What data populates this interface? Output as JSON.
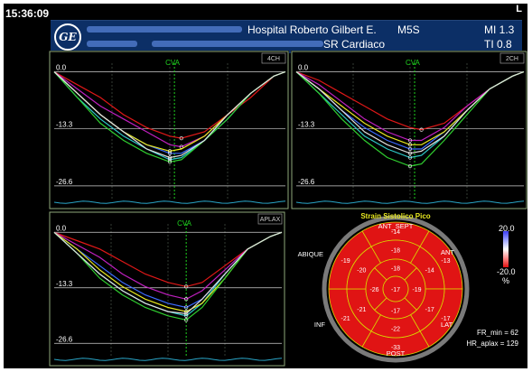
{
  "clock": "15:36:09",
  "corner_label": "L",
  "header": {
    "logo_text": "GE",
    "hospital": "Hospital Roberto Gilbert E.",
    "probe": "M5S",
    "mi": "MI 1.3",
    "department": "SR Cardiaco",
    "ti": "TI 0.8"
  },
  "panels": {
    "four_ch": {
      "view_label": "4CH",
      "marker_label": "CVA"
    },
    "two_ch": {
      "view_label": "2CH",
      "marker_label": "CVA"
    },
    "aplax": {
      "view_label": "APLAX",
      "marker_label": "CVA"
    }
  },
  "colors": {
    "background": "#000000",
    "header": "#0c2f66",
    "cva_marker": "#1fd31f",
    "frame_border": "#8ea77a",
    "bullseye_fill": "#e01414",
    "bullseye_lines": "#d8d800"
  },
  "chart_data": [
    {
      "type": "line",
      "title": "4CH",
      "yticks": [
        "0.0",
        "-13.3",
        "-26.6"
      ],
      "ylim": [
        -30,
        2
      ],
      "xlim": [
        0,
        100
      ],
      "marker": {
        "label": "CVA",
        "x": 52
      },
      "series": [
        {
          "color": "#e01818",
          "x": [
            0,
            10,
            20,
            30,
            40,
            50,
            55,
            65,
            75,
            85,
            95,
            100
          ],
          "values": [
            0,
            -3,
            -6,
            -10,
            -13,
            -15,
            -15.5,
            -14,
            -10,
            -6,
            -1,
            0
          ]
        },
        {
          "color": "#c020c0",
          "x": [
            0,
            10,
            20,
            30,
            40,
            50,
            55,
            65,
            75,
            85,
            95,
            100
          ],
          "values": [
            0,
            -4,
            -8,
            -11,
            -14,
            -17,
            -17.5,
            -15,
            -10,
            -5,
            -1,
            0
          ]
        },
        {
          "color": "#3c6cff",
          "x": [
            0,
            10,
            20,
            30,
            40,
            50,
            55,
            65,
            75,
            85,
            95,
            100
          ],
          "values": [
            0,
            -5,
            -10,
            -14,
            -17,
            -19,
            -19,
            -16,
            -11,
            -5,
            -1,
            0
          ]
        },
        {
          "color": "#2ec8c8",
          "x": [
            0,
            10,
            20,
            30,
            40,
            50,
            55,
            65,
            75,
            85,
            95,
            100
          ],
          "values": [
            0,
            -6,
            -11,
            -15,
            -18,
            -20.5,
            -20,
            -16,
            -10,
            -5,
            -1,
            0
          ]
        },
        {
          "color": "#e8e820",
          "x": [
            0,
            10,
            20,
            30,
            40,
            50,
            55,
            65,
            75,
            85,
            95,
            100
          ],
          "values": [
            0,
            -5,
            -10,
            -14,
            -17,
            -18.5,
            -18,
            -15,
            -10,
            -5,
            -1,
            0
          ]
        },
        {
          "color": "#30d030",
          "x": [
            0,
            10,
            20,
            30,
            40,
            50,
            55,
            65,
            75,
            85,
            95,
            100
          ],
          "values": [
            0,
            -6,
            -12,
            -16,
            -19,
            -21,
            -20.5,
            -16,
            -11,
            -5,
            -1,
            0
          ]
        },
        {
          "color": "#e0e0e0",
          "x": [
            0,
            10,
            20,
            30,
            40,
            50,
            55,
            65,
            75,
            85,
            95,
            100
          ],
          "values": [
            0,
            -5,
            -10,
            -14,
            -18,
            -20,
            -19.5,
            -16,
            -10,
            -5,
            -1,
            0
          ]
        }
      ]
    },
    {
      "type": "line",
      "title": "2CH",
      "yticks": [
        "0.0",
        "-13.3",
        "-26.6"
      ],
      "ylim": [
        -30,
        2
      ],
      "xlim": [
        0,
        100
      ],
      "marker": {
        "label": "CVA",
        "x": 52
      },
      "series": [
        {
          "color": "#e01818",
          "x": [
            0,
            10,
            20,
            30,
            40,
            50,
            55,
            65,
            75,
            85,
            95,
            100
          ],
          "values": [
            0,
            -2,
            -5,
            -8,
            -11,
            -13,
            -13.5,
            -12,
            -8,
            -4,
            -1,
            0
          ]
        },
        {
          "color": "#c020c0",
          "x": [
            0,
            10,
            20,
            30,
            40,
            50,
            55,
            65,
            75,
            85,
            95,
            100
          ],
          "values": [
            0,
            -3,
            -7,
            -11,
            -14,
            -16,
            -16,
            -13,
            -8,
            -4,
            -1,
            0
          ]
        },
        {
          "color": "#3c6cff",
          "x": [
            0,
            10,
            20,
            30,
            40,
            50,
            55,
            65,
            75,
            85,
            95,
            100
          ],
          "values": [
            0,
            -4,
            -9,
            -13,
            -16,
            -18,
            -18,
            -14,
            -9,
            -4,
            -1,
            0
          ]
        },
        {
          "color": "#2ec8c8",
          "x": [
            0,
            10,
            20,
            30,
            40,
            50,
            55,
            65,
            75,
            85,
            95,
            100
          ],
          "values": [
            0,
            -5,
            -10,
            -15,
            -18,
            -20,
            -19.5,
            -15,
            -9,
            -4,
            -1,
            0
          ]
        },
        {
          "color": "#e8e820",
          "x": [
            0,
            10,
            20,
            30,
            40,
            50,
            55,
            65,
            75,
            85,
            95,
            100
          ],
          "values": [
            0,
            -4,
            -8,
            -12,
            -15,
            -17,
            -17,
            -14,
            -9,
            -4,
            -1,
            0
          ]
        },
        {
          "color": "#30d030",
          "x": [
            0,
            10,
            20,
            30,
            40,
            50,
            55,
            65,
            75,
            85,
            95,
            100
          ],
          "values": [
            0,
            -5,
            -11,
            -16,
            -20,
            -22,
            -21.5,
            -16,
            -10,
            -4,
            -1,
            0
          ]
        },
        {
          "color": "#e0e0e0",
          "x": [
            0,
            10,
            20,
            30,
            40,
            50,
            55,
            65,
            75,
            85,
            95,
            100
          ],
          "values": [
            0,
            -4,
            -9,
            -14,
            -17,
            -19,
            -18.5,
            -15,
            -9,
            -4,
            -1,
            0
          ]
        }
      ]
    },
    {
      "type": "line",
      "title": "APLAX",
      "yticks": [
        "0.0",
        "-13.3",
        "-26.6"
      ],
      "ylim": [
        -30,
        2
      ],
      "xlim": [
        0,
        100
      ],
      "marker": {
        "label": "CVA",
        "x": 58
      },
      "series": [
        {
          "color": "#e01818",
          "x": [
            0,
            10,
            20,
            30,
            40,
            50,
            58,
            65,
            75,
            85,
            95,
            100
          ],
          "values": [
            0,
            -2,
            -4,
            -7,
            -10,
            -12,
            -13,
            -12,
            -8,
            -4,
            -1,
            0
          ]
        },
        {
          "color": "#c020c0",
          "x": [
            0,
            10,
            20,
            30,
            40,
            50,
            58,
            65,
            75,
            85,
            95,
            100
          ],
          "values": [
            0,
            -3,
            -6,
            -10,
            -13,
            -15,
            -16,
            -14,
            -9,
            -4,
            -1,
            0
          ]
        },
        {
          "color": "#3c6cff",
          "x": [
            0,
            10,
            20,
            30,
            40,
            50,
            58,
            65,
            75,
            85,
            95,
            100
          ],
          "values": [
            0,
            -4,
            -8,
            -12,
            -15,
            -17,
            -18,
            -16,
            -10,
            -4,
            -1,
            0
          ]
        },
        {
          "color": "#2ec8c8",
          "x": [
            0,
            10,
            20,
            30,
            40,
            50,
            58,
            65,
            75,
            85,
            95,
            100
          ],
          "values": [
            0,
            -5,
            -10,
            -14,
            -17,
            -19,
            -20,
            -17,
            -10,
            -4,
            -1,
            0
          ]
        },
        {
          "color": "#e8e820",
          "x": [
            0,
            10,
            20,
            30,
            40,
            50,
            58,
            65,
            75,
            85,
            95,
            100
          ],
          "values": [
            0,
            -4,
            -9,
            -13,
            -16,
            -18,
            -19,
            -17,
            -11,
            -4,
            -1,
            0
          ]
        },
        {
          "color": "#30d030",
          "x": [
            0,
            10,
            20,
            30,
            40,
            50,
            58,
            65,
            75,
            85,
            95,
            100
          ],
          "values": [
            0,
            -5,
            -11,
            -15,
            -18,
            -20,
            -21,
            -18,
            -11,
            -4,
            -1,
            0
          ]
        },
        {
          "color": "#e0e0e0",
          "x": [
            0,
            10,
            20,
            30,
            40,
            50,
            58,
            65,
            75,
            85,
            95,
            100
          ],
          "values": [
            0,
            -5,
            -10,
            -14,
            -17,
            -19,
            -19.5,
            -16,
            -10,
            -4,
            -1,
            0
          ]
        }
      ]
    }
  ],
  "bullseye": {
    "title": "Strain Sistolico Pico",
    "labels": {
      "ant_sept": "ANT_SEPT",
      "ant": "ANT",
      "abique": "ABIQUE",
      "inf": "INF",
      "lat": "LAT",
      "post": "POST"
    },
    "outer": [
      -14,
      -13,
      -17,
      -33,
      -21,
      -19
    ],
    "mid": [
      -18,
      -14,
      -17,
      -22,
      -21,
      -20
    ],
    "apical": [
      -18,
      -19,
      -17,
      -26
    ],
    "center": -17,
    "scale_top": "20.0",
    "scale_bottom": "-20.0",
    "scale_unit": "%",
    "fr_min": "FR_min = 62",
    "hr_aplax": "HR_aplax = 129"
  }
}
